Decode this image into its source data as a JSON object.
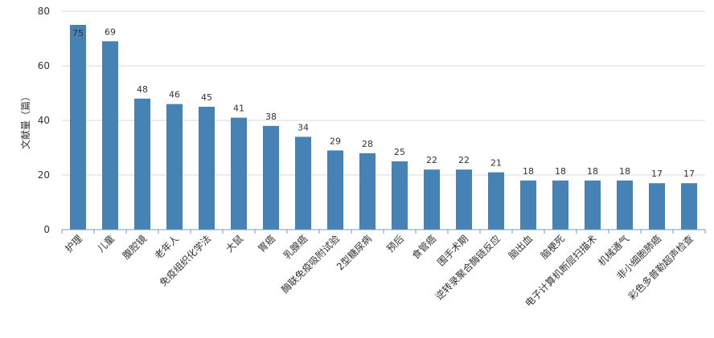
{
  "chart_data": {
    "type": "bar",
    "title": "",
    "xlabel": "",
    "ylabel": "文献量（篇）",
    "ylim": [
      0,
      80
    ],
    "yticks": [
      0,
      20,
      40,
      60,
      80
    ],
    "grid": true,
    "bar_color": "#4682b4",
    "categories": [
      "护理",
      "儿童",
      "腹腔镜",
      "老年人",
      "免疫组织化学法",
      "大鼠",
      "胃癌",
      "乳腺癌",
      "酶联免疫吸附试验",
      "2型糖尿病",
      "预后",
      "食管癌",
      "围手术期",
      "逆转录聚合酶链反应",
      "脑出血",
      "脑梗死",
      "电子计算机断层扫描术",
      "机械通气",
      "非小细胞肺癌",
      "彩色多普勒超声检查"
    ],
    "values": [
      75,
      69,
      48,
      46,
      45,
      41,
      38,
      34,
      29,
      28,
      25,
      22,
      22,
      21,
      18,
      18,
      18,
      18,
      17,
      17
    ]
  }
}
